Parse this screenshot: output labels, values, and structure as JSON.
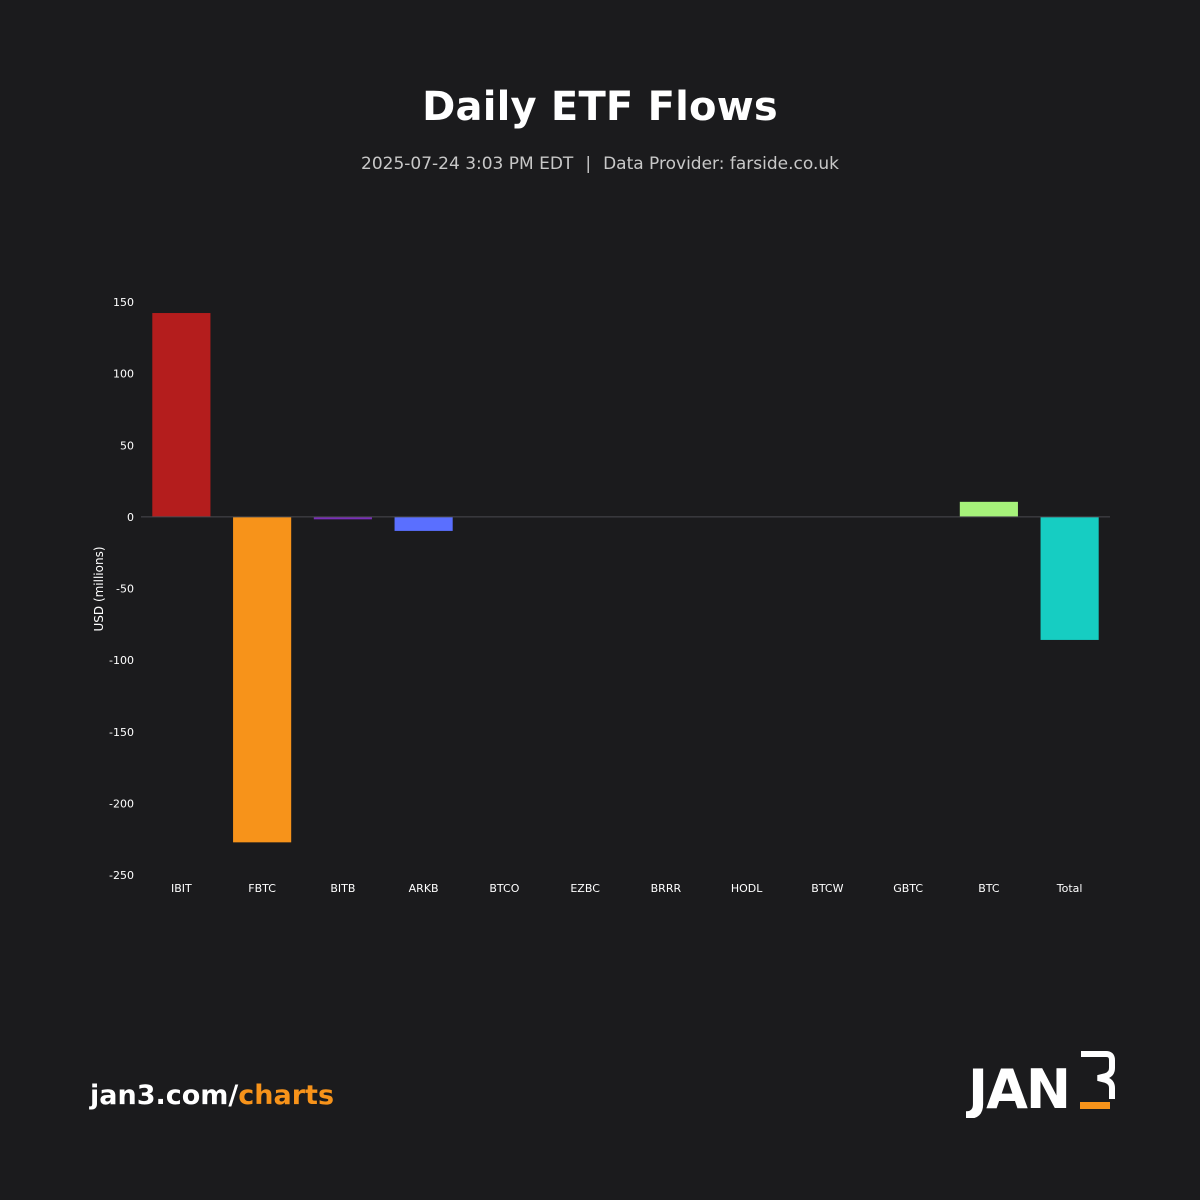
{
  "header": {
    "title": "Daily ETF Flows",
    "timestamp": "2025-07-24 3:03 PM EDT",
    "separator": "|",
    "provider": "Data Provider: farside.co.uk"
  },
  "chart_data": {
    "type": "bar",
    "title": "Daily ETF Flows",
    "xlabel": "",
    "ylabel": "USD (millions)",
    "ylim": [
      -250,
      150
    ],
    "yticks": [
      150,
      100,
      50,
      0,
      -50,
      -100,
      -150,
      -200,
      -250
    ],
    "grid": false,
    "categories": [
      "IBIT",
      "FBTC",
      "BITB",
      "ARKB",
      "BTCO",
      "EZBC",
      "BRRR",
      "HODL",
      "BTCW",
      "GBTC",
      "BTC",
      "Total"
    ],
    "values": [
      142.3,
      -227.2,
      -1.7,
      -9.8,
      0,
      0,
      0,
      0,
      0,
      0,
      10.5,
      -85.9
    ],
    "colors": [
      "#b41d1d",
      "#f7931a",
      "#7a2fb8",
      "#5a6fff",
      "#888888",
      "#888888",
      "#888888",
      "#888888",
      "#888888",
      "#888888",
      "#a6f27a",
      "#16cdc2"
    ]
  },
  "footer": {
    "link_prefix": "jan3.com/",
    "link_accent": "charts",
    "logo_text": "JAN3"
  }
}
